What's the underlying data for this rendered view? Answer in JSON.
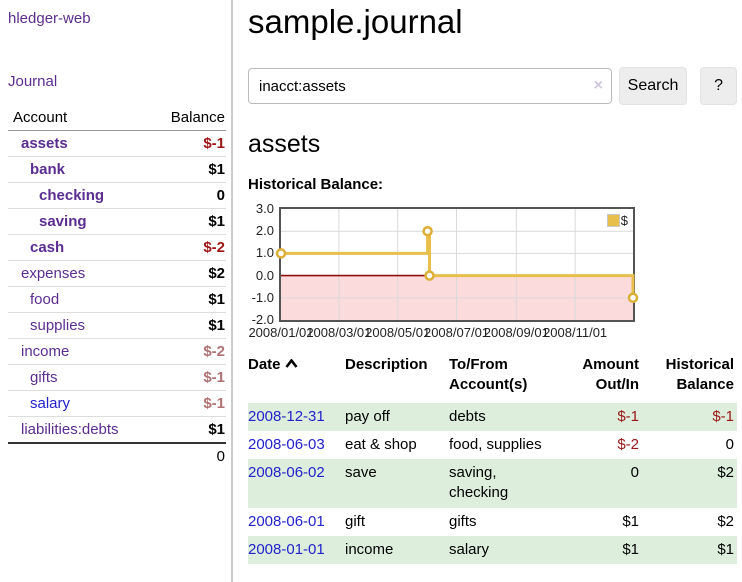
{
  "sidebar": {
    "brand": "hledger-web",
    "nav": {
      "journal": "Journal"
    },
    "accounts_table": {
      "headers": {
        "account": "Account",
        "balance": "Balance"
      },
      "rows": [
        {
          "name": "assets",
          "balance": "$-1",
          "depth": 0,
          "bold": true,
          "link_color": "purple"
        },
        {
          "name": "bank",
          "balance": "$1",
          "depth": 1,
          "bold": true,
          "link_color": "purple"
        },
        {
          "name": "checking",
          "balance": "0",
          "depth": 2,
          "bold": true,
          "link_color": "purple"
        },
        {
          "name": "saving",
          "balance": "$1",
          "depth": 2,
          "bold": true,
          "link_color": "purple"
        },
        {
          "name": "cash",
          "balance": "$-2",
          "depth": 1,
          "bold": true,
          "link_color": "purple"
        },
        {
          "name": "expenses",
          "balance": "$2",
          "depth": 0,
          "bold": false,
          "link_color": "purple"
        },
        {
          "name": "food",
          "balance": "$1",
          "depth": 1,
          "bold": false,
          "link_color": "purple"
        },
        {
          "name": "supplies",
          "balance": "$1",
          "depth": 1,
          "bold": false,
          "link_color": "purple"
        },
        {
          "name": "income",
          "balance": "$-2",
          "depth": 0,
          "bold": false,
          "link_color": "purple"
        },
        {
          "name": "gifts",
          "balance": "$-1",
          "depth": 1,
          "bold": false,
          "link_color": "purple"
        },
        {
          "name": "salary",
          "balance": "$-1",
          "depth": 1,
          "bold": false,
          "link_color": "blue"
        },
        {
          "name": "liabilities:debts",
          "balance": "$1",
          "depth": 0,
          "bold": false,
          "link_color": "purple"
        }
      ],
      "total": "0"
    }
  },
  "header": {
    "title": "sample.journal"
  },
  "search": {
    "value": "inacct:assets",
    "clear_icon": "×",
    "button_label": "Search",
    "help_label": "?"
  },
  "account_page": {
    "title": "assets",
    "chart_label": "Historical Balance:"
  },
  "chart_data": {
    "type": "line",
    "step": true,
    "title": "Historical Balance",
    "series": [
      {
        "name": "$",
        "color": "#e7bf4a",
        "points": [
          {
            "date": "2008-01-01",
            "value": 1
          },
          {
            "date": "2008-06-01",
            "value": 2
          },
          {
            "date": "2008-06-03",
            "value": 0
          },
          {
            "date": "2008-12-31",
            "value": -1
          }
        ]
      }
    ],
    "x_range": [
      "2008-01-01",
      "2008-12-31"
    ],
    "ylim": [
      -2,
      3
    ],
    "yticks": [
      "3.0",
      "2.0",
      "1.0",
      "0.0",
      "-1.0",
      "-2.0"
    ],
    "xticks": [
      "2008/01/01",
      "2008/03/01",
      "2008/05/01",
      "2008/07/01",
      "2008/09/01",
      "2008/11/01"
    ],
    "grid": true,
    "legend_position": "top-right",
    "negative_region_fill": "#fbdbdb",
    "zero_line_color": "#8f0e0e"
  },
  "transactions": {
    "headers": {
      "date": "Date",
      "description": "Description",
      "accounts": "To/From\nAccount(s)",
      "amount": "Amount\nOut/In",
      "balance": "Historical\nBalance"
    },
    "sort": {
      "column": "date",
      "direction": "ascending"
    },
    "rows": [
      {
        "date": "2008-12-31",
        "description": "pay off",
        "accounts": "debts",
        "amount": "$-1",
        "balance": "$-1"
      },
      {
        "date": "2008-06-03",
        "description": "eat & shop",
        "accounts": "food, supplies",
        "amount": "$-2",
        "balance": "0"
      },
      {
        "date": "2008-06-02",
        "description": "save",
        "accounts": "saving, checking",
        "amount": "0",
        "balance": "$2"
      },
      {
        "date": "2008-06-01",
        "description": "gift",
        "accounts": "gifts",
        "amount": "$1",
        "balance": "$2"
      },
      {
        "date": "2008-01-01",
        "description": "income",
        "accounts": "salary",
        "amount": "$1",
        "balance": "$1"
      }
    ]
  },
  "colors": {
    "link_purple": "#5c2d91",
    "link_blue": "#2222cc",
    "negative_strong": "#9d1515",
    "negative_muted": "#b07272",
    "row_stripe_green": "#ddeedd",
    "chart_line_gold": "#e7bf4a",
    "chart_marker_gold": "#dcae35",
    "chart_negative_fill": "#fbdbdb",
    "chart_zero_line": "#8f0e0e",
    "divider": "#cccccc"
  }
}
